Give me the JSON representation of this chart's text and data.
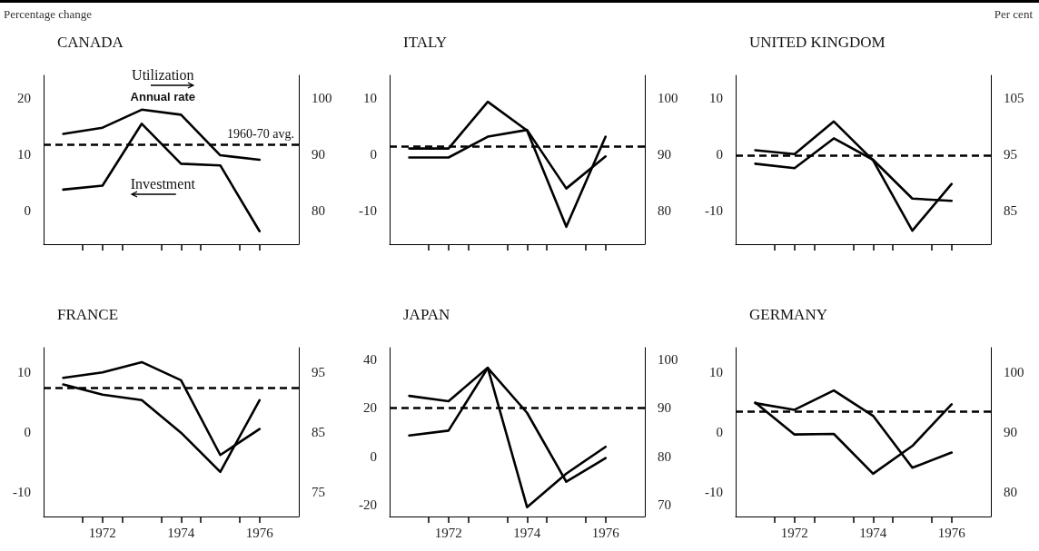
{
  "chart_data": [
    {
      "type": "line",
      "title": "CANADA",
      "ylabel": "Percentage change",
      "x": [
        1971,
        1972,
        1973,
        1974,
        1975,
        1976
      ],
      "xlim": [
        1970.5,
        1977
      ],
      "xticks": [
        {
          "value": 1971.5,
          "label": null
        },
        1972,
        {
          "value": 1972.5,
          "label": null
        },
        {
          "value": 1973.5,
          "label": null
        },
        1974,
        {
          "value": 1974.5,
          "label": null
        },
        {
          "value": 1975.5,
          "label": null
        },
        1976
      ],
      "ylim": [
        -6,
        24
      ],
      "yticks": [
        0,
        10,
        20
      ],
      "y2lim": [
        74,
        104
      ],
      "y2ticks": [
        80,
        90,
        100
      ],
      "tick_labels": "y",
      "annotations": [
        "Annual rate"
      ],
      "ref_lines": [
        {
          "axis": "y2",
          "value": 91.7,
          "label": "1960-70 avg.",
          "line_style": "dashed",
          "color": "#000000"
        }
      ],
      "series": [
        {
          "name": "Utilization",
          "color": "#000000",
          "axis": "y2",
          "values": [
            93.6,
            94.7,
            97.9,
            97.0,
            89.8,
            89.0
          ]
        },
        {
          "name": "Investment",
          "color": "#000000",
          "values": [
            3.7,
            4.4,
            15.4,
            8.3,
            8.0,
            -3.7
          ]
        }
      ]
    },
    {
      "type": "line",
      "title": "ITALY",
      "x": [
        1971,
        1972,
        1973,
        1974,
        1975,
        1976
      ],
      "xlim": [
        1970.5,
        1977
      ],
      "xticks": [
        {
          "value": 1971.5,
          "label": null
        },
        1972,
        {
          "value": 1972.5,
          "label": null
        },
        {
          "value": 1973.5,
          "label": null
        },
        1974,
        {
          "value": 1974.5,
          "label": null
        },
        {
          "value": 1975.5,
          "label": null
        },
        1976
      ],
      "ylim": [
        -16,
        14
      ],
      "y2lim": [
        74,
        104
      ],
      "yticks": [
        -10,
        0,
        10
      ],
      "y2ticks": [
        80,
        90,
        100
      ],
      "tick_labels": "y",
      "ref_lines": [
        {
          "axis": "y2",
          "value": 91.3,
          "line_style": "dashed",
          "color": "#000000"
        }
      ],
      "series": [
        {
          "color": "#000000",
          "values": [
            1.0,
            1.0,
            9.3,
            4.2,
            -12.9,
            3.1
          ]
        },
        {
          "color": "#000000",
          "axis": "y2",
          "values": [
            89.4,
            89.4,
            93.1,
            94.3,
            83.9,
            89.6
          ]
        }
      ]
    },
    {
      "type": "line",
      "title": "UNITED KINGDOM",
      "y2label": "Per cent",
      "x": [
        1971,
        1972,
        1973,
        1974,
        1975,
        1976
      ],
      "xlim": [
        1970.5,
        1977
      ],
      "xticks": [
        {
          "value": 1971.5,
          "label": null
        },
        1972,
        {
          "value": 1972.5,
          "label": null
        },
        {
          "value": 1973.5,
          "label": null
        },
        1974,
        {
          "value": 1974.5,
          "label": null
        },
        {
          "value": 1975.5,
          "label": null
        },
        1976
      ],
      "ylim": [
        -16,
        14
      ],
      "yticks": [
        -10,
        0,
        10
      ],
      "y2lim": [
        79,
        109
      ],
      "y2ticks": [
        85,
        95,
        105
      ],
      "tick_labels": "y",
      "ref_lines": [
        {
          "axis": "y2",
          "value": 94.7,
          "line_style": "dashed",
          "color": "#000000"
        }
      ],
      "series": [
        {
          "color": "#000000",
          "values": [
            0.7,
            0.0,
            5.8,
            -1.1,
            -13.6,
            -5.3
          ]
        },
        {
          "color": "#000000",
          "axis": "y2",
          "values": [
            93.3,
            92.5,
            97.8,
            94.0,
            87.1,
            86.7
          ]
        }
      ]
    },
    {
      "type": "line",
      "title": "FRANCE",
      "x": [
        1971,
        1972,
        1973,
        1974,
        1975,
        1976
      ],
      "xlim": [
        1970.5,
        1977
      ],
      "xticks": [
        {
          "value": 1971.5,
          "label": null
        },
        1972,
        {
          "value": 1972.5,
          "label": null
        },
        {
          "value": 1973.5,
          "label": null
        },
        1974,
        {
          "value": 1974.5,
          "label": null
        },
        {
          "value": 1975.5,
          "label": null
        },
        1976
      ],
      "ylim": [
        -14,
        14
      ],
      "yticks": [
        -10,
        0,
        10
      ],
      "y2lim": [
        71,
        99
      ],
      "y2ticks": [
        75,
        85,
        95
      ],
      "ref_lines": [
        {
          "axis": "y2",
          "value": 92.4,
          "line_style": "dashed",
          "color": "#000000"
        }
      ],
      "series": [
        {
          "color": "#000000",
          "axis": "y2",
          "values": [
            94.0,
            94.9,
            96.6,
            93.6,
            81.2,
            85.5
          ]
        },
        {
          "color": "#000000",
          "values": [
            7.9,
            6.2,
            5.3,
            -0.1,
            -6.6,
            5.3
          ]
        }
      ]
    },
    {
      "type": "line",
      "title": "JAPAN",
      "x": [
        1971,
        1972,
        1973,
        1974,
        1975,
        1976
      ],
      "xlim": [
        1970.5,
        1977
      ],
      "xticks": [
        {
          "value": 1971.5,
          "label": null
        },
        1972,
        {
          "value": 1972.5,
          "label": null
        },
        {
          "value": 1973.5,
          "label": null
        },
        1974,
        {
          "value": 1974.5,
          "label": null
        },
        {
          "value": 1975.5,
          "label": null
        },
        1976
      ],
      "ylim": [
        -25,
        45
      ],
      "yticks": [
        -20,
        0,
        20,
        40
      ],
      "y2lim": [
        67.5,
        102.5
      ],
      "y2ticks": [
        70,
        80,
        90,
        100
      ],
      "ref_lines": [
        {
          "axis": "y2",
          "value": 90,
          "line_style": "dashed",
          "color": "#000000"
        }
      ],
      "series": [
        {
          "color": "#000000",
          "values": [
            25.0,
            22.8,
            36.7,
            -21.1,
            -7.2,
            3.9
          ]
        },
        {
          "color": "#000000",
          "axis": "y2",
          "values": [
            84.3,
            85.3,
            98.3,
            89.0,
            74.7,
            79.6
          ]
        }
      ]
    },
    {
      "type": "line",
      "title": "GERMANY",
      "x": [
        1971,
        1972,
        1973,
        1974,
        1975,
        1976
      ],
      "xlim": [
        1970.5,
        1977
      ],
      "xticks": [
        {
          "value": 1971.5,
          "label": null
        },
        1972,
        {
          "value": 1972.5,
          "label": null
        },
        {
          "value": 1973.5,
          "label": null
        },
        1974,
        {
          "value": 1974.5,
          "label": null
        },
        {
          "value": 1975.5,
          "label": null
        },
        1976
      ],
      "ylim": [
        -14,
        14
      ],
      "y2lim": [
        76,
        104
      ],
      "yticks": [
        -10,
        0,
        10
      ],
      "y2ticks": [
        80,
        90,
        100
      ],
      "ref_lines": [
        {
          "axis": "y2",
          "value": 93.4,
          "line_style": "dashed",
          "color": "#000000"
        }
      ],
      "series": [
        {
          "color": "#000000",
          "axis": "y2",
          "values": [
            94.8,
            93.7,
            96.9,
            92.7,
            84.1,
            86.6
          ]
        },
        {
          "color": "#000000",
          "values": [
            4.9,
            -0.4,
            -0.3,
            -6.9,
            -2.3,
            4.6
          ]
        }
      ]
    }
  ]
}
